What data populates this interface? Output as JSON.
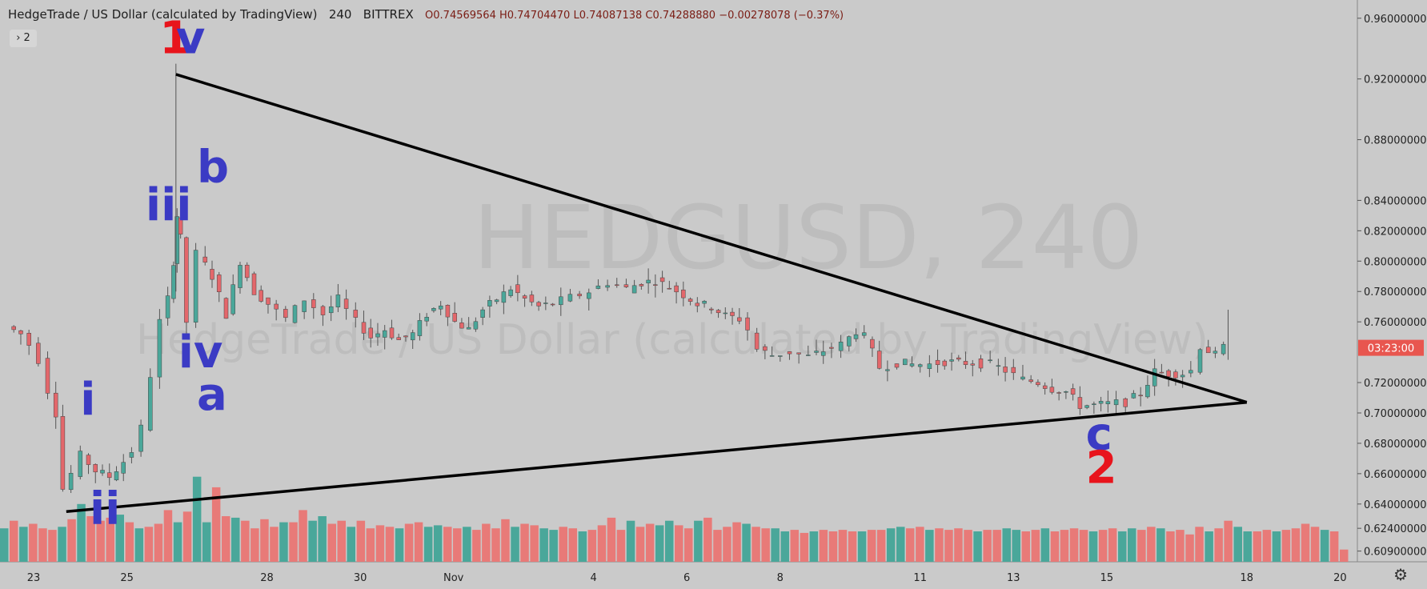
{
  "header": {
    "title": "HedgeTrade / US Dollar (calculated by TradingView)",
    "interval": "240",
    "exchange": "BITTREX",
    "ohlc": "O0.74569564 H0.74704470 L0.74087138 C0.74288880 −0.00278078 (−0.37%)"
  },
  "toggle_label": "› 2",
  "watermark": {
    "symbol": "HEDGUSD, 240",
    "name": "HedgeTrade / US Dollar (calculated by TradingView)"
  },
  "colors": {
    "background": "#cacaca",
    "up": "#4aa79a",
    "down": "#e3676b",
    "volume_up": "#4aa79a",
    "volume_down": "#e87a78",
    "wave_blue": "#3b3bc4",
    "wave_red": "#e8141c",
    "price_tag": "#e8564f"
  },
  "price_tag": "03:23:00",
  "chart_data": {
    "type": "candlestick",
    "title": "HedgeTrade / US Dollar (calculated by TradingView)",
    "x_tick_labels": [
      "23",
      "25",
      "28",
      "30",
      "Nov",
      "4",
      "6",
      "8",
      "11",
      "13",
      "15",
      "18",
      "20"
    ],
    "y_tick_labels": [
      "0.96000000",
      "0.92000000",
      "0.88000000",
      "0.84000000",
      "0.82000000",
      "0.80000000",
      "0.78000000",
      "0.76000000",
      "0.72000000",
      "0.70000000",
      "0.68000000",
      "0.66000000",
      "0.64000000",
      "0.62400000",
      "0.60900000"
    ],
    "y_ticks": [
      0.96,
      0.92,
      0.88,
      0.84,
      0.82,
      0.8,
      0.78,
      0.76,
      0.72,
      0.7,
      0.68,
      0.66,
      0.64,
      0.624,
      0.609
    ],
    "ylim": [
      0.603,
      0.972
    ],
    "close_path": [
      [
        22.5,
        0.757
      ],
      [
        22.8,
        0.752
      ],
      [
        23.0,
        0.745
      ],
      [
        23.2,
        0.735
      ],
      [
        23.4,
        0.715
      ],
      [
        23.55,
        0.7
      ],
      [
        23.7,
        0.65
      ],
      [
        23.9,
        0.66
      ],
      [
        24.1,
        0.672
      ],
      [
        24.4,
        0.662
      ],
      [
        24.7,
        0.658
      ],
      [
        25.0,
        0.668
      ],
      [
        25.2,
        0.675
      ],
      [
        25.4,
        0.69
      ],
      [
        25.6,
        0.725
      ],
      [
        25.8,
        0.76
      ],
      [
        25.95,
        0.775
      ],
      [
        26.05,
        0.8
      ],
      [
        26.1,
        0.83
      ],
      [
        26.2,
        0.815
      ],
      [
        26.35,
        0.76
      ],
      [
        26.6,
        0.805
      ],
      [
        26.9,
        0.79
      ],
      [
        27.2,
        0.765
      ],
      [
        27.5,
        0.8
      ],
      [
        27.8,
        0.78
      ],
      [
        28.1,
        0.772
      ],
      [
        28.5,
        0.762
      ],
      [
        28.9,
        0.775
      ],
      [
        29.3,
        0.765
      ],
      [
        29.6,
        0.775
      ],
      [
        30.0,
        0.76
      ],
      [
        30.3,
        0.75
      ],
      [
        30.6,
        0.755
      ],
      [
        30.9,
        0.748
      ],
      [
        31.2,
        0.752
      ],
      [
        31.5,
        0.765
      ],
      [
        31.8,
        0.772
      ],
      [
        32.1,
        0.76
      ],
      [
        32.4,
        0.755
      ],
      [
        32.7,
        0.768
      ],
      [
        33.0,
        0.775
      ],
      [
        33.3,
        0.782
      ],
      [
        33.6,
        0.775
      ],
      [
        33.9,
        0.77
      ],
      [
        34.2,
        0.772
      ],
      [
        34.6,
        0.776
      ],
      [
        35.0,
        0.78
      ],
      [
        35.4,
        0.786
      ],
      [
        35.8,
        0.782
      ],
      [
        36.1,
        0.786
      ],
      [
        36.4,
        0.787
      ],
      [
        36.7,
        0.783
      ],
      [
        37.0,
        0.778
      ],
      [
        37.3,
        0.772
      ],
      [
        37.6,
        0.77
      ],
      [
        37.9,
        0.764
      ],
      [
        38.2,
        0.762
      ],
      [
        38.4,
        0.755
      ],
      [
        38.6,
        0.742
      ],
      [
        38.9,
        0.738
      ],
      [
        39.3,
        0.74
      ],
      [
        39.7,
        0.737
      ],
      [
        40.0,
        0.741
      ],
      [
        40.4,
        0.745
      ],
      [
        40.7,
        0.754
      ],
      [
        40.9,
        0.75
      ],
      [
        41.2,
        0.73
      ],
      [
        41.6,
        0.733
      ],
      [
        41.9,
        0.732
      ],
      [
        42.3,
        0.732
      ],
      [
        42.6,
        0.734
      ],
      [
        42.9,
        0.733
      ],
      [
        43.2,
        0.733
      ],
      [
        43.6,
        0.732
      ],
      [
        43.9,
        0.728
      ],
      [
        44.3,
        0.722
      ],
      [
        44.6,
        0.72
      ],
      [
        44.9,
        0.716
      ],
      [
        45.2,
        0.714
      ],
      [
        45.5,
        0.705
      ],
      [
        45.8,
        0.705
      ],
      [
        46.1,
        0.706
      ],
      [
        46.5,
        0.707
      ],
      [
        46.8,
        0.713
      ],
      [
        47.1,
        0.727
      ],
      [
        47.4,
        0.726
      ],
      [
        47.7,
        0.726
      ],
      [
        47.9,
        0.728
      ],
      [
        48.1,
        0.744
      ],
      [
        48.4,
        0.738
      ],
      [
        48.6,
        0.743
      ]
    ],
    "volume_series": [
      0.624,
      0.629,
      0.625,
      0.627,
      0.624,
      0.623,
      0.625,
      0.63,
      0.64,
      0.632,
      0.629,
      0.631,
      0.633,
      0.628,
      0.624,
      0.625,
      0.627,
      0.636,
      0.628,
      0.635,
      0.658,
      0.628,
      0.651,
      0.632,
      0.631,
      0.629,
      0.624,
      0.63,
      0.625,
      0.628,
      0.628,
      0.636,
      0.629,
      0.632,
      0.627,
      0.629,
      0.625,
      0.629,
      0.624,
      0.626,
      0.625,
      0.624,
      0.627,
      0.628,
      0.625,
      0.626,
      0.625,
      0.624,
      0.625,
      0.623,
      0.627,
      0.624,
      0.63,
      0.625,
      0.627,
      0.626,
      0.624,
      0.623,
      0.625,
      0.624,
      0.622,
      0.623,
      0.626,
      0.631,
      0.623,
      0.629,
      0.625,
      0.627,
      0.626,
      0.629,
      0.626,
      0.624,
      0.629,
      0.631,
      0.623,
      0.625,
      0.628,
      0.627,
      0.625,
      0.624,
      0.624,
      0.622,
      0.623,
      0.621,
      0.622,
      0.623,
      0.622,
      0.623,
      0.622,
      0.622,
      0.623,
      0.623,
      0.624,
      0.625,
      0.624,
      0.625,
      0.623,
      0.624,
      0.623,
      0.624,
      0.623,
      0.622,
      0.623,
      0.623,
      0.624,
      0.623,
      0.622,
      0.623,
      0.624,
      0.622,
      0.623,
      0.624,
      0.623,
      0.622,
      0.623,
      0.624,
      0.622,
      0.624,
      0.623,
      0.625,
      0.624,
      0.622,
      0.623,
      0.62,
      0.625,
      0.622,
      0.624,
      0.629,
      0.625,
      0.622,
      0.622,
      0.623,
      0.622,
      0.623,
      0.624,
      0.627,
      0.625,
      0.623,
      0.622,
      0.61
    ]
  },
  "trendlines": {
    "upper": [
      [
        26.05,
        0.923
      ],
      [
        49.0,
        0.707
      ]
    ],
    "lower": [
      [
        23.7,
        0.635
      ],
      [
        49.0,
        0.707
      ]
    ]
  },
  "wave_labels": [
    {
      "text": "1",
      "x": 25.7,
      "y": 0.937,
      "color": "red"
    },
    {
      "text": "v",
      "x": 26.05,
      "y": 0.937,
      "color": "blue"
    },
    {
      "text": "b",
      "x": 26.5,
      "y": 0.852,
      "color": "blue"
    },
    {
      "text": "iii",
      "x": 25.4,
      "y": 0.827,
      "color": "blue"
    },
    {
      "text": "iv",
      "x": 26.1,
      "y": 0.73,
      "color": "blue"
    },
    {
      "text": "a",
      "x": 26.5,
      "y": 0.702,
      "color": "blue"
    },
    {
      "text": "i",
      "x": 24.0,
      "y": 0.699,
      "color": "blue"
    },
    {
      "text": "ii",
      "x": 24.2,
      "y": 0.627,
      "color": "blue"
    },
    {
      "text": "c",
      "x": 45.55,
      "y": 0.676,
      "color": "blue"
    },
    {
      "text": "2",
      "x": 45.55,
      "y": 0.654,
      "color": "red"
    }
  ]
}
